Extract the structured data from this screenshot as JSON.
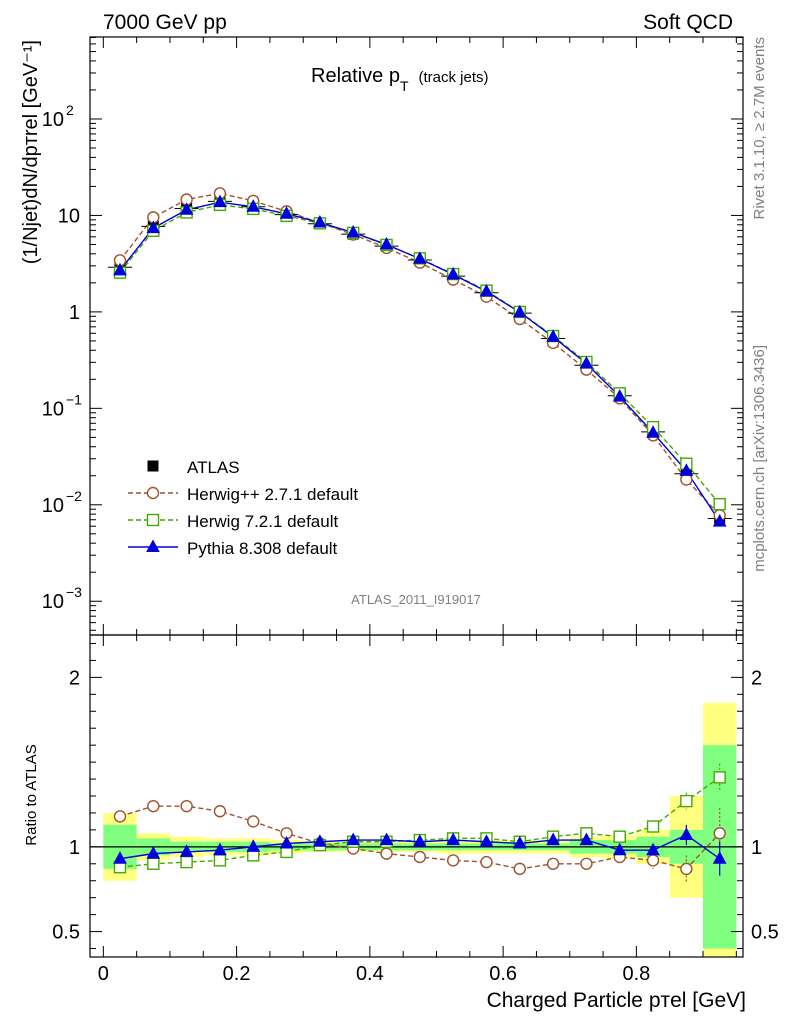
{
  "header": {
    "left": "7000 GeV pp",
    "right": "Soft QCD"
  },
  "side": {
    "top": "Rivet 3.1.10, ≥ 2.7M events",
    "bottom": "mcplots.cern.ch [arXiv:1306.3436]"
  },
  "chart_data": {
    "type": "line",
    "title_main": "Relative p",
    "title_sub": "T",
    "title_suffix": "(track jets)",
    "analysis_id": "ATLAS_2011_I919017",
    "xlabel": "Charged Particle pᴛel [GeV]",
    "ylabel_main": "(1/Njet)dN/dpᴛrel [GeV⁻¹]",
    "ylabel_ratio": "Ratio to ATLAS",
    "xlim": [
      -0.02,
      0.96
    ],
    "ylim_main_log10": [
      -3.35,
      2.85
    ],
    "ylim_ratio": [
      0.35,
      2.25
    ],
    "x_ticks": [
      "0",
      "0.2",
      "0.4",
      "0.6",
      "0.8"
    ],
    "x_tick_values": [
      0,
      0.2,
      0.4,
      0.6,
      0.8
    ],
    "y_ticks_main": [
      {
        "v": 100,
        "base": "10",
        "exp": "2"
      },
      {
        "v": 10,
        "base": "10",
        "exp": ""
      },
      {
        "v": 1,
        "base": "1",
        "exp": ""
      },
      {
        "v": 0.1,
        "base": "10",
        "exp": "−1"
      },
      {
        "v": 0.01,
        "base": "10",
        "exp": "−2"
      },
      {
        "v": 0.001,
        "base": "10",
        "exp": "−3"
      }
    ],
    "y_ticks_ratio": [
      {
        "v": 2,
        "label": "2"
      },
      {
        "v": 1,
        "label": "1"
      },
      {
        "v": 0.5,
        "label": "0.5"
      }
    ],
    "x": [
      0.025,
      0.075,
      0.125,
      0.175,
      0.225,
      0.275,
      0.325,
      0.375,
      0.425,
      0.475,
      0.525,
      0.575,
      0.625,
      0.675,
      0.725,
      0.775,
      0.825,
      0.875,
      0.925
    ],
    "bin_edges": [
      0.0,
      0.05,
      0.1,
      0.15,
      0.2,
      0.25,
      0.3,
      0.35,
      0.4,
      0.45,
      0.5,
      0.55,
      0.6,
      0.65,
      0.7,
      0.75,
      0.8,
      0.85,
      0.9,
      0.95
    ],
    "data_name": "ATLAS",
    "data_values": [
      2.9,
      7.7,
      11.8,
      14.0,
      12.3,
      10.2,
      8.2,
      6.4,
      4.8,
      3.45,
      2.35,
      1.58,
      0.97,
      0.53,
      0.28,
      0.135,
      0.057,
      0.021,
      0.0072
    ],
    "band_green": [
      0.13,
      0.05,
      0.03,
      0.03,
      0.03,
      0.02,
      0.02,
      0.02,
      0.02,
      0.02,
      0.02,
      0.02,
      0.02,
      0.02,
      0.04,
      0.04,
      0.06,
      0.1,
      0.6
    ],
    "band_yellow": [
      0.2,
      0.08,
      0.06,
      0.05,
      0.05,
      0.04,
      0.03,
      0.03,
      0.03,
      0.03,
      0.04,
      0.04,
      0.04,
      0.04,
      0.06,
      0.07,
      0.1,
      0.3,
      0.85
    ],
    "series": [
      {
        "name": "Herwig++ 2.7.1 default",
        "color": "#a0522d",
        "marker": "circle",
        "dashed": true,
        "ratio": [
          1.18,
          1.24,
          1.24,
          1.21,
          1.15,
          1.08,
          1.02,
          0.99,
          0.96,
          0.94,
          0.92,
          0.91,
          0.87,
          0.9,
          0.9,
          0.94,
          0.92,
          0.87,
          1.08
        ],
        "err": [
          0,
          0,
          0,
          0,
          0,
          0,
          0,
          0,
          0,
          0,
          0,
          0,
          0,
          0,
          0,
          0.03,
          0.05,
          0.08,
          0.15
        ]
      },
      {
        "name": "Herwig 7.2.1 default",
        "color": "#44aa00",
        "marker": "square",
        "dashed": true,
        "ratio": [
          0.88,
          0.9,
          0.91,
          0.92,
          0.95,
          0.97,
          1.01,
          1.03,
          1.03,
          1.04,
          1.05,
          1.05,
          1.03,
          1.06,
          1.08,
          1.06,
          1.12,
          1.27,
          1.41
        ],
        "err": [
          0,
          0,
          0,
          0,
          0,
          0,
          0,
          0,
          0,
          0,
          0,
          0,
          0,
          0,
          0,
          0.02,
          0.03,
          0.05,
          0.08
        ]
      },
      {
        "name": "Pythia 8.308 default",
        "color": "#0000dd",
        "marker": "triangle",
        "dashed": false,
        "ratio": [
          0.93,
          0.96,
          0.97,
          0.98,
          1.0,
          1.02,
          1.03,
          1.04,
          1.04,
          1.03,
          1.04,
          1.03,
          1.02,
          1.04,
          1.04,
          0.98,
          0.98,
          1.07,
          0.93
        ],
        "err": [
          0,
          0,
          0,
          0,
          0,
          0,
          0,
          0,
          0,
          0,
          0,
          0,
          0,
          0,
          0,
          0.02,
          0.03,
          0.06,
          0.1
        ]
      }
    ]
  }
}
